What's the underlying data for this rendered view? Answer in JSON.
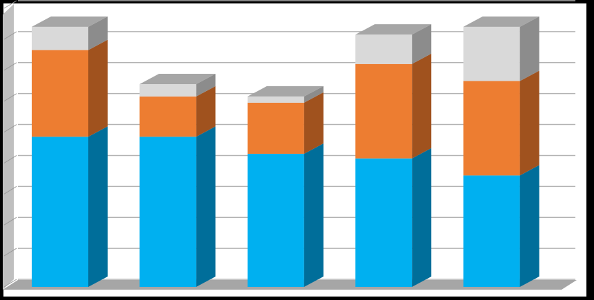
{
  "chart_data": {
    "type": "bar",
    "stacked": true,
    "three_d": true,
    "categories": [
      "",
      "",
      "",
      "",
      ""
    ],
    "series": [
      {
        "values": [
          4.85,
          4.85,
          4.3,
          4.15,
          3.6
        ],
        "color": "#00b0f0",
        "side_color": "#006e9a"
      },
      {
        "values": [
          2.8,
          1.3,
          1.65,
          3.05,
          3.05
        ],
        "color": "#ed7d31",
        "side_color": "#a0521e"
      },
      {
        "values": [
          0.75,
          0.4,
          0.2,
          0.95,
          1.75
        ],
        "color": "#d9d9d9",
        "side_color": "#8c8c8c"
      }
    ],
    "ylim": [
      0,
      9
    ],
    "grid": true,
    "legend": "none",
    "title": "",
    "xlabel": "",
    "ylabel": "",
    "colors": {
      "background": "#ffffff",
      "frame": "#000000",
      "gridline": "#b3b3b3",
      "wall": "#bfbfbf",
      "floor": "#a6a6a6"
    }
  }
}
